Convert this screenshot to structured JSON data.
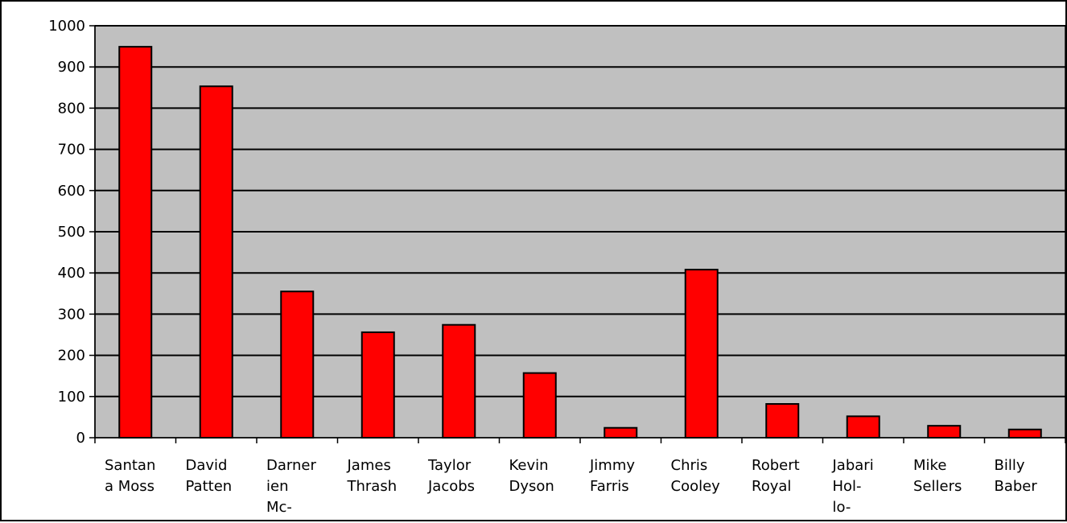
{
  "chart_data": {
    "type": "bar",
    "title": "",
    "xlabel": "",
    "ylabel": "",
    "ylim": [
      0,
      1000
    ],
    "ytick_step": 100,
    "grid": true,
    "legend": "none",
    "colors": {
      "bar_fill": "#ff0000",
      "bar_stroke": "#000000",
      "plot_background": "#c0c0c0",
      "gridline": "#000000"
    },
    "categories": [
      "Santana Moss",
      "David Patten",
      "Darnerien Mc-",
      "James Thrash",
      "Taylor Jacobs",
      "Kevin Dyson",
      "Jimmy Farris",
      "Chris Cooley",
      "Robert Royal",
      "Jabari Hol-lo-",
      "Mike Sellers",
      "Billy Baber"
    ],
    "category_label_lines": [
      [
        "Santan",
        "a Moss"
      ],
      [
        "David",
        "Patten"
      ],
      [
        "Darner",
        "ien",
        "Mc-"
      ],
      [
        "James",
        "Thrash"
      ],
      [
        "Taylor",
        "Jacobs"
      ],
      [
        "Kevin",
        "Dyson"
      ],
      [
        "Jimmy",
        "Farris"
      ],
      [
        "Chris",
        "Cooley"
      ],
      [
        "Robert",
        "Royal"
      ],
      [
        "Jabari",
        "Hol-",
        "lo-"
      ],
      [
        "Mike",
        "Sellers"
      ],
      [
        "Billy",
        "Baber"
      ]
    ],
    "values": [
      949,
      853,
      355,
      256,
      274,
      157,
      24,
      408,
      82,
      52,
      29,
      20
    ]
  }
}
